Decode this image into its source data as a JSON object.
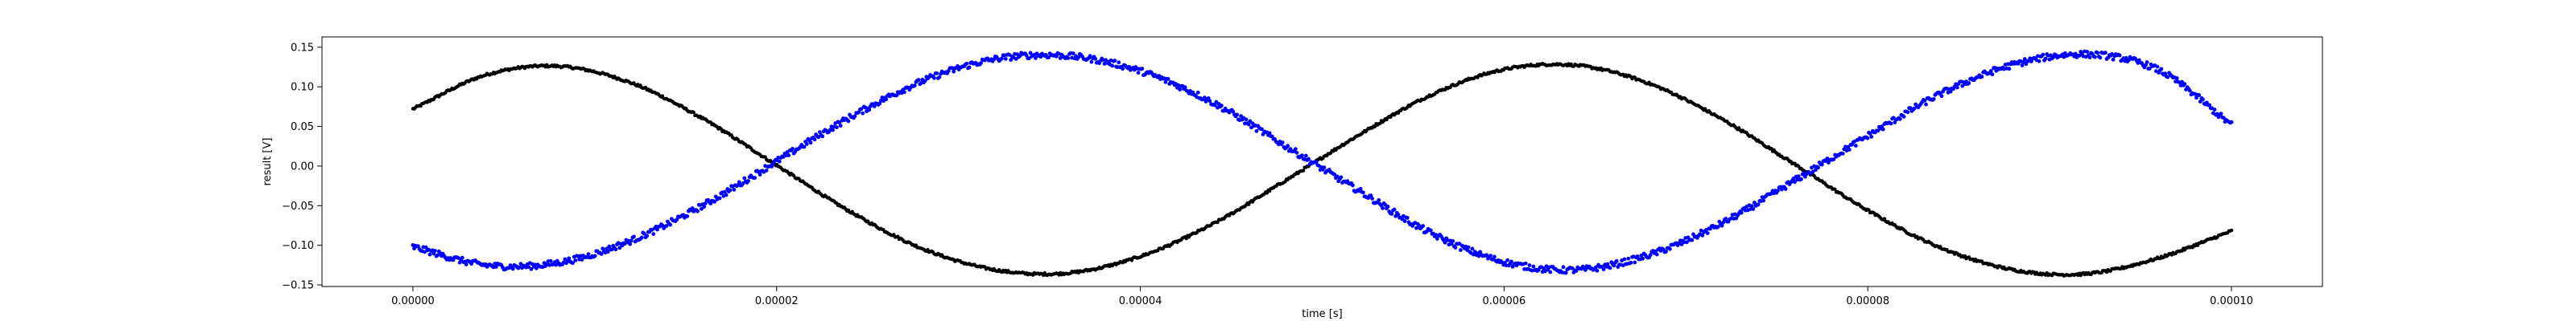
{
  "chart_data": {
    "type": "scatter",
    "title": "",
    "xlabel": "time [s]",
    "ylabel": "result [V]",
    "xlim": [
      -5e-06,
      0.000105
    ],
    "ylim": [
      -0.152,
      0.163
    ],
    "xticks": [
      0,
      2e-05,
      4e-05,
      6e-05,
      8e-05,
      0.0001
    ],
    "xtick_labels": [
      "0.00000",
      "0.00002",
      "0.00004",
      "0.00006",
      "0.00008",
      "0.00010"
    ],
    "yticks": [
      -0.15,
      -0.1,
      -0.05,
      0.0,
      0.05,
      0.1,
      0.15
    ],
    "ytick_labels": [
      "−0.15",
      "−0.10",
      "−0.05",
      "0.00",
      "0.05",
      "0.10",
      "0.15"
    ],
    "grid": false,
    "legend": false,
    "series": [
      {
        "color": "#000000",
        "marker_size": 2.2,
        "noise": 0.0015,
        "x": [
          0,
          4e-06,
          8e-06,
          1.2e-05,
          1.6e-05,
          2e-05,
          2.4e-05,
          2.8e-05,
          3.2e-05,
          3.6e-05,
          4e-05,
          4.4e-05,
          4.8e-05,
          5.2e-05,
          5.6e-05,
          6e-05,
          6.4e-05,
          6.8e-05,
          7.2e-05,
          7.6e-05,
          8e-05,
          8.4e-05,
          8.8e-05,
          9.2e-05,
          9.6e-05,
          0.0001
        ],
        "y": [
          0.072,
          0.115,
          0.126,
          0.105,
          0.059,
          0.001,
          -0.057,
          -0.104,
          -0.131,
          -0.135,
          -0.114,
          -0.073,
          -0.018,
          0.039,
          0.09,
          0.122,
          0.127,
          0.104,
          0.059,
          0.002,
          -0.056,
          -0.103,
          -0.131,
          -0.136,
          -0.116,
          -0.082
        ]
      },
      {
        "color": "#0000ff",
        "marker_size": 2.4,
        "noise": 0.004,
        "x": [
          0,
          4e-06,
          8e-06,
          1.2e-05,
          1.6e-05,
          2e-05,
          2.4e-05,
          2.8e-05,
          3.2e-05,
          3.6e-05,
          4e-05,
          4.4e-05,
          4.8e-05,
          5.2e-05,
          5.6e-05,
          6e-05,
          6.4e-05,
          6.8e-05,
          7.2e-05,
          7.6e-05,
          8e-05,
          8.4e-05,
          8.8e-05,
          9.2e-05,
          9.6e-05,
          0.0001
        ],
        "y": [
          -0.102,
          -0.125,
          -0.122,
          -0.094,
          -0.049,
          0.006,
          0.061,
          0.107,
          0.135,
          0.139,
          0.12,
          0.08,
          0.025,
          -0.031,
          -0.085,
          -0.121,
          -0.131,
          -0.112,
          -0.072,
          -0.018,
          0.038,
          0.091,
          0.128,
          0.141,
          0.121,
          0.052
        ]
      }
    ]
  }
}
